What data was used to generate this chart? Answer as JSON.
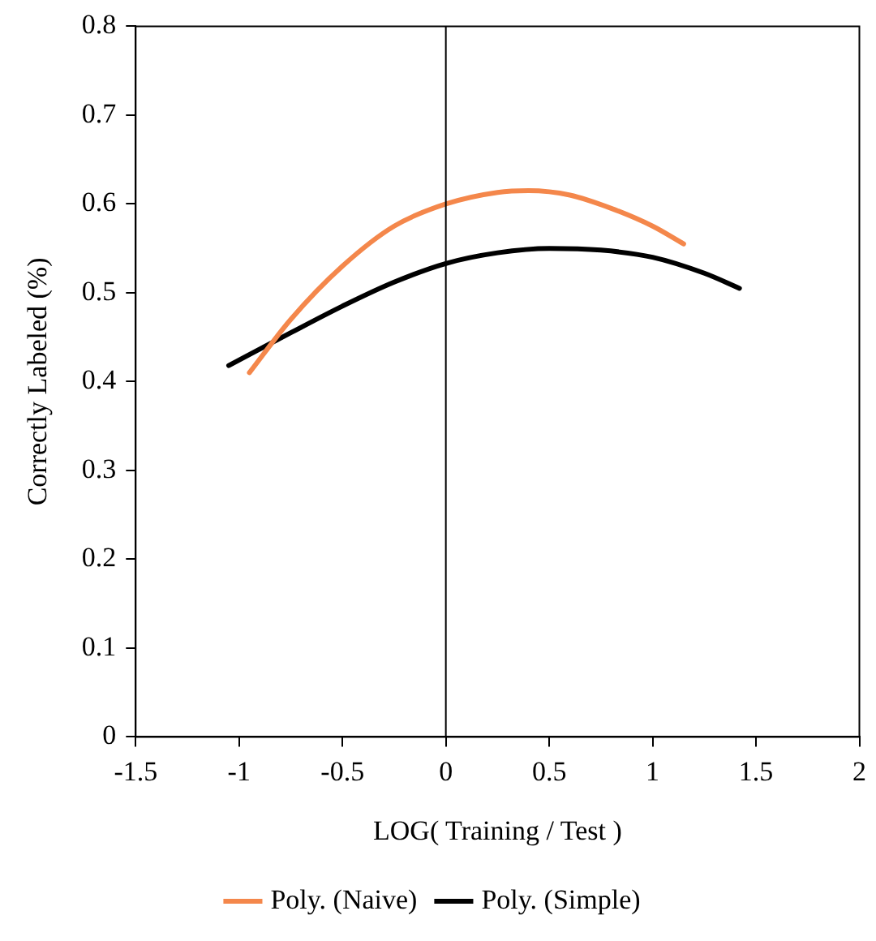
{
  "chart_data": {
    "type": "line",
    "xlabel": "LOG( Training / Test )",
    "ylabel": "Correctly Labeled (%)",
    "xlim": [
      -1.5,
      2
    ],
    "xticks": [
      -1.5,
      -1,
      -0.5,
      0,
      0.5,
      1,
      1.5,
      2
    ],
    "ylim": [
      0,
      0.8
    ],
    "yticks": [
      0,
      0.1,
      0.2,
      0.3,
      0.4,
      0.5,
      0.6,
      0.7,
      0.8
    ],
    "grid": false,
    "legend": "bottom",
    "marker": "none",
    "line_style": "solid",
    "ref_lines": [
      {
        "axis": "x",
        "value": 0,
        "color": "#000000"
      }
    ],
    "series": [
      {
        "name": "Poly. (Naive)",
        "color": "#f4874b",
        "x": [
          -0.95,
          -0.75,
          -0.5,
          -0.25,
          0,
          0.25,
          0.4,
          0.6,
          0.8,
          1.0,
          1.15
        ],
        "values": [
          0.41,
          0.47,
          0.53,
          0.575,
          0.6,
          0.613,
          0.615,
          0.61,
          0.595,
          0.575,
          0.555
        ]
      },
      {
        "name": "Poly. (Simple)",
        "color": "#000000",
        "x": [
          -1.05,
          -0.75,
          -0.5,
          -0.25,
          0,
          0.25,
          0.5,
          0.75,
          1.0,
          1.25,
          1.42
        ],
        "values": [
          0.418,
          0.455,
          0.485,
          0.512,
          0.533,
          0.545,
          0.55,
          0.548,
          0.54,
          0.522,
          0.505
        ]
      }
    ]
  }
}
